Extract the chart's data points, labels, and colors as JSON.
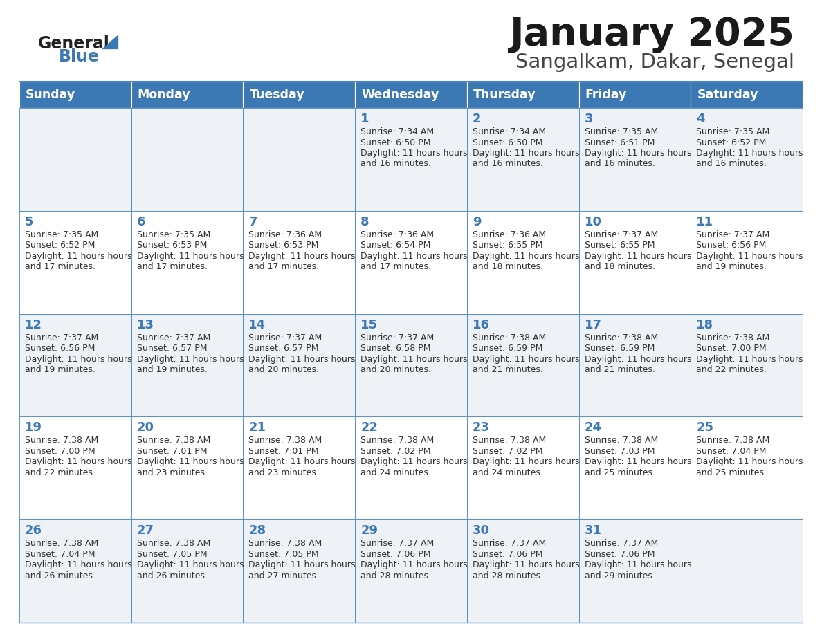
{
  "title": "January 2025",
  "subtitle": "Sangalkam, Dakar, Senegal",
  "header_bg_color": "#3c78b4",
  "header_text_color": "#ffffff",
  "day_names": [
    "Sunday",
    "Monday",
    "Tuesday",
    "Wednesday",
    "Thursday",
    "Friday",
    "Saturday"
  ],
  "row_bg_colors": [
    "#eef2f7",
    "#ffffff"
  ],
  "cell_border_color": "#4a86c8",
  "date_text_color": "#3c78b4",
  "info_text_color": "#333333",
  "background_color": "#ffffff",
  "logo_general_color": "#222222",
  "logo_blue_color": "#3c78b4",
  "logo_triangle_color": "#3c78b4",
  "calendar_data": [
    [
      {
        "date": "",
        "sunrise": "",
        "sunset": "",
        "daylight": ""
      },
      {
        "date": "",
        "sunrise": "",
        "sunset": "",
        "daylight": ""
      },
      {
        "date": "",
        "sunrise": "",
        "sunset": "",
        "daylight": ""
      },
      {
        "date": "1",
        "sunrise": "7:34 AM",
        "sunset": "6:50 PM",
        "daylight": "11 hours and 16 minutes."
      },
      {
        "date": "2",
        "sunrise": "7:34 AM",
        "sunset": "6:50 PM",
        "daylight": "11 hours and 16 minutes."
      },
      {
        "date": "3",
        "sunrise": "7:35 AM",
        "sunset": "6:51 PM",
        "daylight": "11 hours and 16 minutes."
      },
      {
        "date": "4",
        "sunrise": "7:35 AM",
        "sunset": "6:52 PM",
        "daylight": "11 hours and 16 minutes."
      }
    ],
    [
      {
        "date": "5",
        "sunrise": "7:35 AM",
        "sunset": "6:52 PM",
        "daylight": "11 hours and 17 minutes."
      },
      {
        "date": "6",
        "sunrise": "7:35 AM",
        "sunset": "6:53 PM",
        "daylight": "11 hours and 17 minutes."
      },
      {
        "date": "7",
        "sunrise": "7:36 AM",
        "sunset": "6:53 PM",
        "daylight": "11 hours and 17 minutes."
      },
      {
        "date": "8",
        "sunrise": "7:36 AM",
        "sunset": "6:54 PM",
        "daylight": "11 hours and 17 minutes."
      },
      {
        "date": "9",
        "sunrise": "7:36 AM",
        "sunset": "6:55 PM",
        "daylight": "11 hours and 18 minutes."
      },
      {
        "date": "10",
        "sunrise": "7:37 AM",
        "sunset": "6:55 PM",
        "daylight": "11 hours and 18 minutes."
      },
      {
        "date": "11",
        "sunrise": "7:37 AM",
        "sunset": "6:56 PM",
        "daylight": "11 hours and 19 minutes."
      }
    ],
    [
      {
        "date": "12",
        "sunrise": "7:37 AM",
        "sunset": "6:56 PM",
        "daylight": "11 hours and 19 minutes."
      },
      {
        "date": "13",
        "sunrise": "7:37 AM",
        "sunset": "6:57 PM",
        "daylight": "11 hours and 19 minutes."
      },
      {
        "date": "14",
        "sunrise": "7:37 AM",
        "sunset": "6:57 PM",
        "daylight": "11 hours and 20 minutes."
      },
      {
        "date": "15",
        "sunrise": "7:37 AM",
        "sunset": "6:58 PM",
        "daylight": "11 hours and 20 minutes."
      },
      {
        "date": "16",
        "sunrise": "7:38 AM",
        "sunset": "6:59 PM",
        "daylight": "11 hours and 21 minutes."
      },
      {
        "date": "17",
        "sunrise": "7:38 AM",
        "sunset": "6:59 PM",
        "daylight": "11 hours and 21 minutes."
      },
      {
        "date": "18",
        "sunrise": "7:38 AM",
        "sunset": "7:00 PM",
        "daylight": "11 hours and 22 minutes."
      }
    ],
    [
      {
        "date": "19",
        "sunrise": "7:38 AM",
        "sunset": "7:00 PM",
        "daylight": "11 hours and 22 minutes."
      },
      {
        "date": "20",
        "sunrise": "7:38 AM",
        "sunset": "7:01 PM",
        "daylight": "11 hours and 23 minutes."
      },
      {
        "date": "21",
        "sunrise": "7:38 AM",
        "sunset": "7:01 PM",
        "daylight": "11 hours and 23 minutes."
      },
      {
        "date": "22",
        "sunrise": "7:38 AM",
        "sunset": "7:02 PM",
        "daylight": "11 hours and 24 minutes."
      },
      {
        "date": "23",
        "sunrise": "7:38 AM",
        "sunset": "7:02 PM",
        "daylight": "11 hours and 24 minutes."
      },
      {
        "date": "24",
        "sunrise": "7:38 AM",
        "sunset": "7:03 PM",
        "daylight": "11 hours and 25 minutes."
      },
      {
        "date": "25",
        "sunrise": "7:38 AM",
        "sunset": "7:04 PM",
        "daylight": "11 hours and 25 minutes."
      }
    ],
    [
      {
        "date": "26",
        "sunrise": "7:38 AM",
        "sunset": "7:04 PM",
        "daylight": "11 hours and 26 minutes."
      },
      {
        "date": "27",
        "sunrise": "7:38 AM",
        "sunset": "7:05 PM",
        "daylight": "11 hours and 26 minutes."
      },
      {
        "date": "28",
        "sunrise": "7:38 AM",
        "sunset": "7:05 PM",
        "daylight": "11 hours and 27 minutes."
      },
      {
        "date": "29",
        "sunrise": "7:37 AM",
        "sunset": "7:06 PM",
        "daylight": "11 hours and 28 minutes."
      },
      {
        "date": "30",
        "sunrise": "7:37 AM",
        "sunset": "7:06 PM",
        "daylight": "11 hours and 28 minutes."
      },
      {
        "date": "31",
        "sunrise": "7:37 AM",
        "sunset": "7:06 PM",
        "daylight": "11 hours and 29 minutes."
      },
      {
        "date": "",
        "sunrise": "",
        "sunset": "",
        "daylight": ""
      }
    ]
  ]
}
